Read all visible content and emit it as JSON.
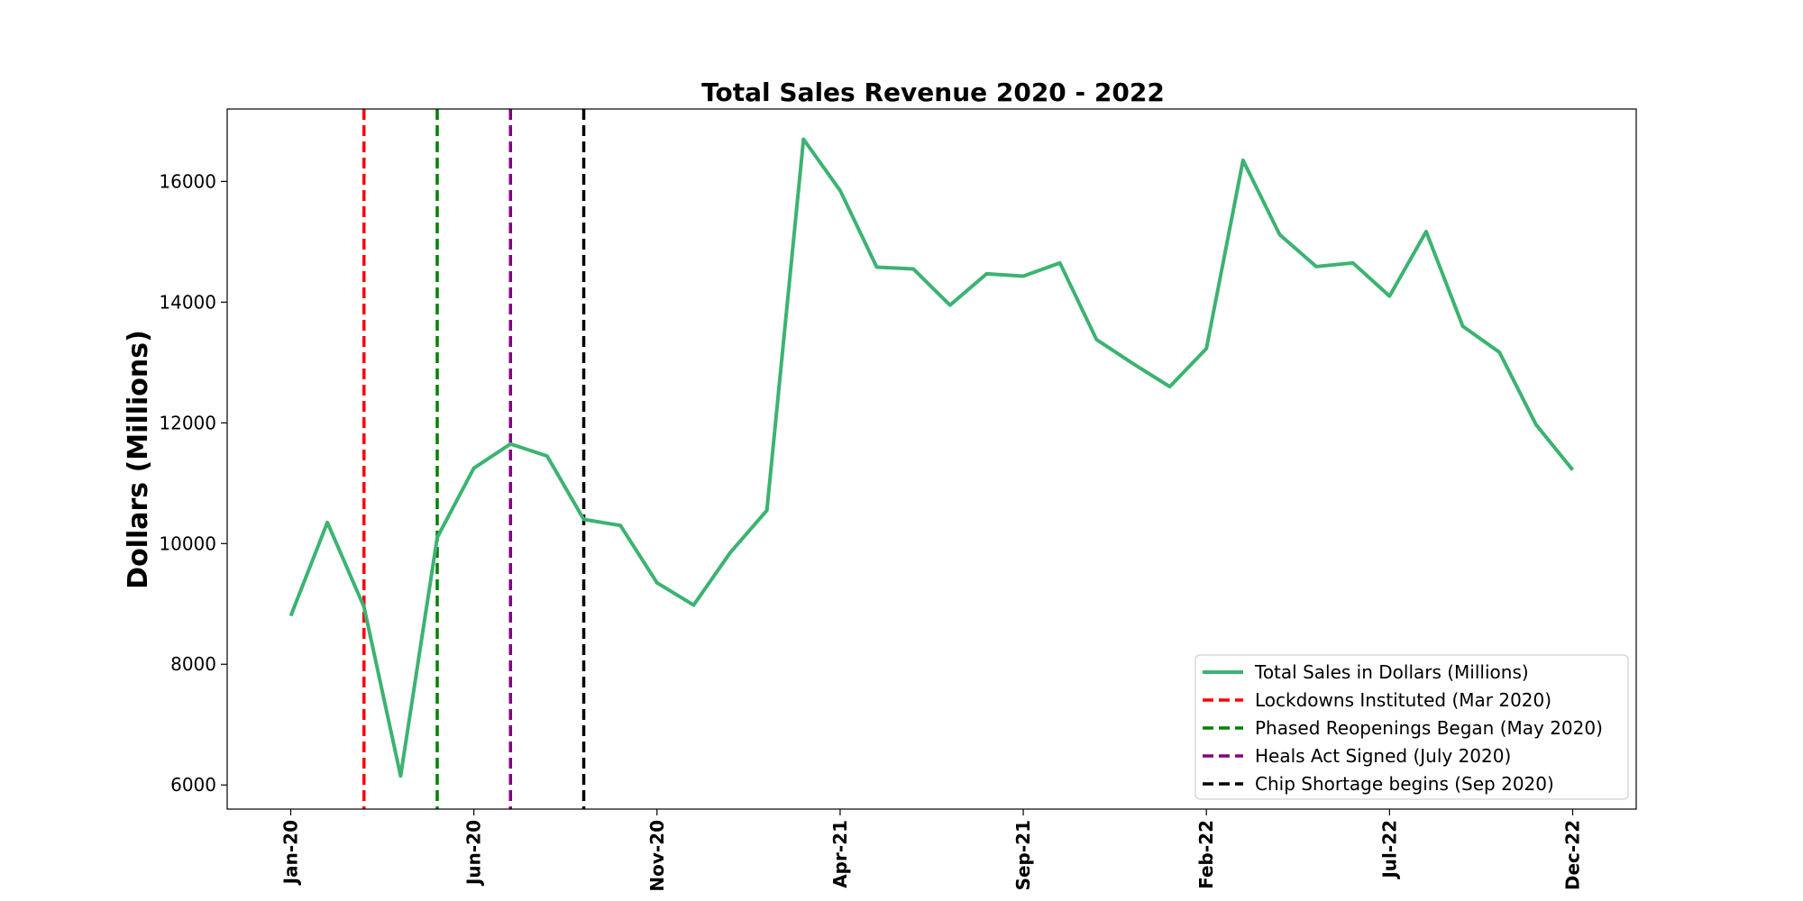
{
  "chart_data": {
    "type": "line",
    "title": "Total Sales Revenue 2020 - 2022",
    "xlabel": "",
    "ylabel": "Dollars (Millions)",
    "ylim": [
      5600,
      17200
    ],
    "yticks": [
      6000,
      8000,
      10000,
      12000,
      14000,
      16000
    ],
    "x_tick_labels": [
      "Jan-20",
      "Jun-20",
      "Nov-20",
      "Apr-21",
      "Sep-21",
      "Feb-22",
      "Jul-22",
      "Dec-22"
    ],
    "x_tick_month_index": [
      0,
      5,
      10,
      15,
      20,
      25,
      30,
      35
    ],
    "grid": false,
    "legend_position": "lower-right",
    "series": [
      {
        "name": "Total Sales in Dollars (Millions)",
        "color": "#3cb371",
        "x": [
          "Jan-20",
          "Feb-20",
          "Mar-20",
          "Apr-20",
          "May-20",
          "Jun-20",
          "Jul-20",
          "Aug-20",
          "Sep-20",
          "Oct-20",
          "Nov-20",
          "Dec-20",
          "Jan-21",
          "Feb-21",
          "Mar-21",
          "Apr-21",
          "May-21",
          "Jun-21",
          "Jul-21",
          "Aug-21",
          "Sep-21",
          "Oct-21",
          "Nov-21",
          "Dec-21",
          "Jan-22",
          "Feb-22",
          "Mar-22",
          "Apr-22",
          "May-22",
          "Jun-22",
          "Jul-22",
          "Aug-22",
          "Sep-22",
          "Oct-22",
          "Nov-22",
          "Dec-22"
        ],
        "values": [
          8800,
          10350,
          8950,
          6150,
          10100,
          11250,
          11650,
          11450,
          10400,
          10300,
          9350,
          8980,
          9850,
          10550,
          16700,
          15850,
          14580,
          14550,
          13950,
          14470,
          14430,
          14650,
          13380,
          12980,
          12600,
          13230,
          16350,
          15120,
          14590,
          14650,
          14100,
          15170,
          13600,
          13170,
          11970,
          11220
        ]
      }
    ],
    "events": [
      {
        "name": "Lockdowns Instituted (Mar 2020)",
        "month": "Mar-20",
        "color": "#ff0000"
      },
      {
        "name": "Phased Reopenings Began (May 2020)",
        "month": "May-20",
        "color": "#008000"
      },
      {
        "name": "Heals Act Signed (July 2020)",
        "month": "Jul-20",
        "color": "#800080"
      },
      {
        "name": "Chip Shortage begins (Sep 2020)",
        "month": "Sep-20",
        "color": "#000000"
      }
    ]
  }
}
